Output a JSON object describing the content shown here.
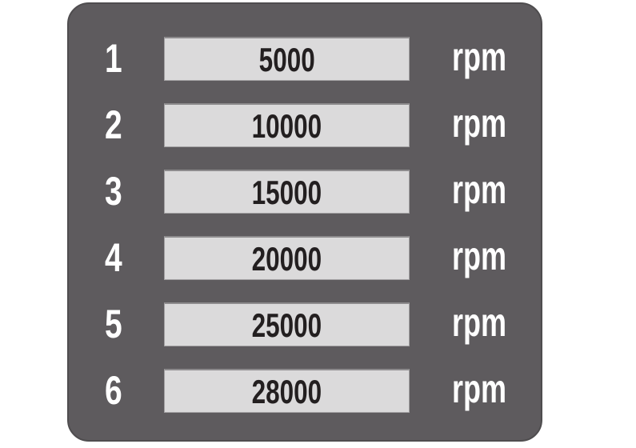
{
  "panel": {
    "bg_color": "#5e5b5e",
    "box_bg_color": "#dbdadb",
    "value_text_color": "#231f20",
    "label_text_color": "#ffffff"
  },
  "rows": [
    {
      "gear": "1",
      "value": "5000",
      "unit": "rpm"
    },
    {
      "gear": "2",
      "value": "10000",
      "unit": "rpm"
    },
    {
      "gear": "3",
      "value": "15000",
      "unit": "rpm"
    },
    {
      "gear": "4",
      "value": "20000",
      "unit": "rpm"
    },
    {
      "gear": "5",
      "value": "25000",
      "unit": "rpm"
    },
    {
      "gear": "6",
      "value": "28000",
      "unit": "rpm"
    }
  ]
}
